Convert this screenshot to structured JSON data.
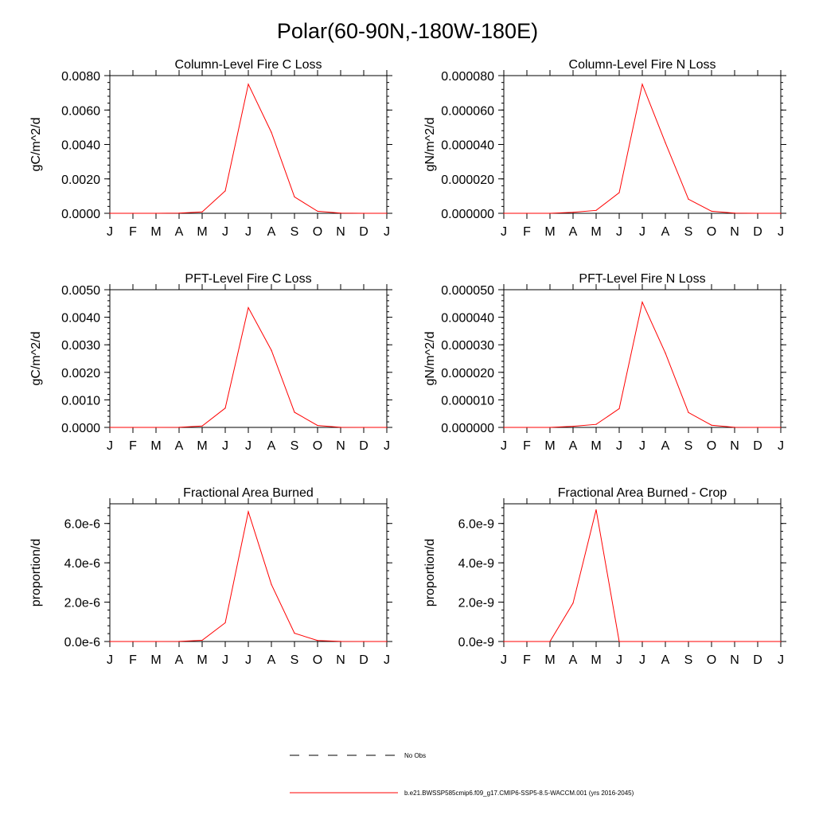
{
  "figure": {
    "title": "Polar(60-90N,-180W-180E)",
    "colors": {
      "series": "#ff0000",
      "axis": "#000000",
      "background": "#ffffff"
    }
  },
  "legend": {
    "entries": [
      {
        "label": "No Obs",
        "style": "dashed",
        "color": "#000000"
      },
      {
        "label": "b.e21.BWSSP585cmip6.f09_g17.CMIP6-SSP5-8.5-WACCM.001 (yrs 2016-2045)",
        "style": "solid",
        "color": "#ff0000"
      }
    ]
  },
  "chart_data": [
    {
      "type": "line",
      "title": "Column-Level Fire C Loss",
      "ylabel": "gC/m^2/d",
      "xlabel": "",
      "categories": [
        "J",
        "F",
        "M",
        "A",
        "M",
        "J",
        "J",
        "A",
        "S",
        "O",
        "N",
        "D",
        "J"
      ],
      "ylim": [
        0,
        0.008
      ],
      "yticks": [
        0,
        0.002,
        0.004,
        0.006,
        0.008
      ],
      "ytick_labels": [
        "0.0000",
        "0.0020",
        "0.0040",
        "0.0060",
        "0.0080"
      ],
      "series": [
        {
          "name": "b.e21.BWSSP585cmip6.f09_g17.CMIP6-SSP5-8.5-WACCM.001 (yrs 2016-2045)",
          "values": [
            0,
            0,
            0,
            1e-05,
            8e-05,
            0.0013,
            0.0075,
            0.0047,
            0.00095,
            0.00012,
            1e-05,
            0,
            0
          ]
        }
      ]
    },
    {
      "type": "line",
      "title": "Column-Level Fire N Loss",
      "ylabel": "gN/m^2/d",
      "xlabel": "",
      "categories": [
        "J",
        "F",
        "M",
        "A",
        "M",
        "J",
        "J",
        "A",
        "S",
        "O",
        "N",
        "D",
        "J"
      ],
      "ylim": [
        0,
        8e-05
      ],
      "yticks": [
        0,
        2e-05,
        4e-05,
        6e-05,
        8e-05
      ],
      "ytick_labels": [
        "0.000000",
        "0.000020",
        "0.000040",
        "0.000060",
        "0.000080"
      ],
      "series": [
        {
          "name": "b.e21.BWSSP585cmip6.f09_g17.CMIP6-SSP5-8.5-WACCM.001 (yrs 2016-2045)",
          "values": [
            0,
            0,
            0,
            6e-07,
            1.7e-06,
            1.2e-05,
            7.5e-05,
            4.1e-05,
            8.2e-06,
            1.2e-06,
            1e-07,
            0,
            0
          ]
        }
      ]
    },
    {
      "type": "line",
      "title": "PFT-Level Fire C Loss",
      "ylabel": "gC/m^2/d",
      "xlabel": "",
      "categories": [
        "J",
        "F",
        "M",
        "A",
        "M",
        "J",
        "J",
        "A",
        "S",
        "O",
        "N",
        "D",
        "J"
      ],
      "ylim": [
        0,
        0.005
      ],
      "yticks": [
        0,
        0.001,
        0.002,
        0.003,
        0.004,
        0.005
      ],
      "ytick_labels": [
        "0.0000",
        "0.0010",
        "0.0020",
        "0.0030",
        "0.0040",
        "0.0050"
      ],
      "series": [
        {
          "name": "b.e21.BWSSP585cmip6.f09_g17.CMIP6-SSP5-8.5-WACCM.001 (yrs 2016-2045)",
          "values": [
            0,
            0,
            0,
            5e-06,
            5e-05,
            0.0007,
            0.00435,
            0.0028,
            0.00055,
            7e-05,
            5e-06,
            0,
            0
          ]
        }
      ]
    },
    {
      "type": "line",
      "title": "PFT-Level Fire N Loss",
      "ylabel": "gN/m^2/d",
      "xlabel": "",
      "categories": [
        "J",
        "F",
        "M",
        "A",
        "M",
        "J",
        "J",
        "A",
        "S",
        "O",
        "N",
        "D",
        "J"
      ],
      "ylim": [
        0,
        5e-05
      ],
      "yticks": [
        0,
        1e-05,
        2e-05,
        3e-05,
        4e-05,
        5e-05
      ],
      "ytick_labels": [
        "0.000000",
        "0.000010",
        "0.000020",
        "0.000030",
        "0.000040",
        "0.000050"
      ],
      "series": [
        {
          "name": "b.e21.BWSSP585cmip6.f09_g17.CMIP6-SSP5-8.5-WACCM.001 (yrs 2016-2045)",
          "values": [
            0,
            0,
            0,
            4e-07,
            1.1e-06,
            6.8e-06,
            4.55e-05,
            2.7e-05,
            5.4e-06,
            8e-07,
            5e-08,
            0,
            0
          ]
        }
      ]
    },
    {
      "type": "line",
      "title": "Fractional Area Burned",
      "ylabel": "proportion/d",
      "xlabel": "",
      "categories": [
        "J",
        "F",
        "M",
        "A",
        "M",
        "J",
        "J",
        "A",
        "S",
        "O",
        "N",
        "D",
        "J"
      ],
      "ylim": [
        0,
        7e-06
      ],
      "yticks": [
        0,
        2e-06,
        4e-06,
        6e-06
      ],
      "ytick_labels": [
        "0.0e-6",
        "2.0e-6",
        "4.0e-6",
        "6.0e-6"
      ],
      "series": [
        {
          "name": "b.e21.BWSSP585cmip6.f09_g17.CMIP6-SSP5-8.5-WACCM.001 (yrs 2016-2045)",
          "values": [
            0,
            0,
            0,
            5e-09,
            6e-08,
            9.5e-07,
            6.6e-06,
            2.9e-06,
            4.2e-07,
            5e-08,
            5e-09,
            0,
            0
          ]
        }
      ]
    },
    {
      "type": "line",
      "title": "Fractional Area Burned - Crop",
      "ylabel": "proportion/d",
      "xlabel": "",
      "categories": [
        "J",
        "F",
        "M",
        "A",
        "M",
        "J",
        "J",
        "A",
        "S",
        "O",
        "N",
        "D",
        "J"
      ],
      "ylim": [
        0,
        7e-09
      ],
      "yticks": [
        0,
        2e-09,
        4e-09,
        6e-09
      ],
      "ytick_labels": [
        "0.0e-9",
        "2.0e-9",
        "4.0e-9",
        "6.0e-9"
      ],
      "series": [
        {
          "name": "b.e21.BWSSP585cmip6.f09_g17.CMIP6-SSP5-8.5-WACCM.001 (yrs 2016-2045)",
          "values": [
            0,
            0,
            0,
            1.95e-09,
            6.7e-09,
            0,
            0,
            0,
            0,
            0,
            0,
            0,
            0
          ]
        }
      ]
    }
  ]
}
